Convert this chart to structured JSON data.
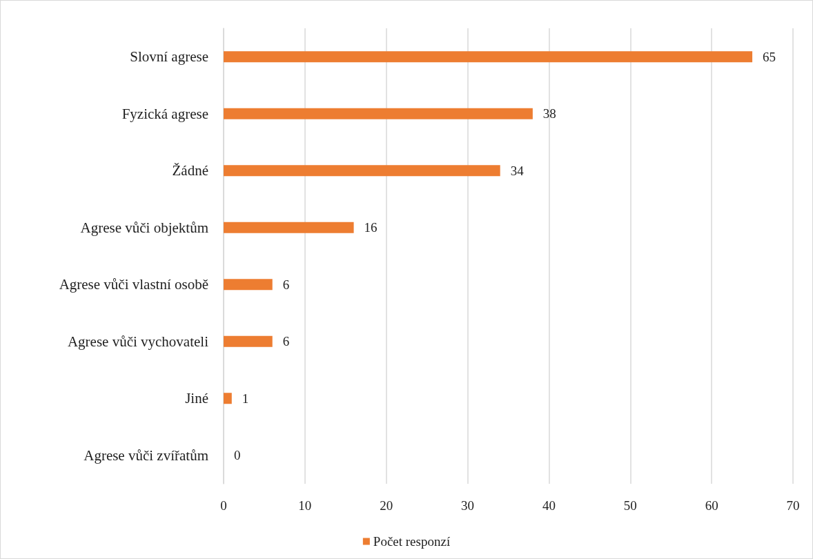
{
  "chart_data": {
    "type": "bar",
    "orientation": "horizontal",
    "categories": [
      "Slovní agrese",
      "Fyzická agrese",
      "Žádné",
      "Agrese vůči objektům",
      "Agrese vůči vlastní osobě",
      "Agrese vůči vychovateli",
      "Jiné",
      "Agrese vůči zvířatům"
    ],
    "series": [
      {
        "name": "Počet responzí",
        "color": "#ed7d31",
        "values": [
          65,
          38,
          34,
          16,
          6,
          6,
          1,
          0
        ]
      }
    ],
    "xlim": [
      0,
      70
    ],
    "xticks": [
      0,
      10,
      20,
      30,
      40,
      50,
      60,
      70
    ],
    "grid": "x",
    "legend": "bottom",
    "data_labels": true
  }
}
